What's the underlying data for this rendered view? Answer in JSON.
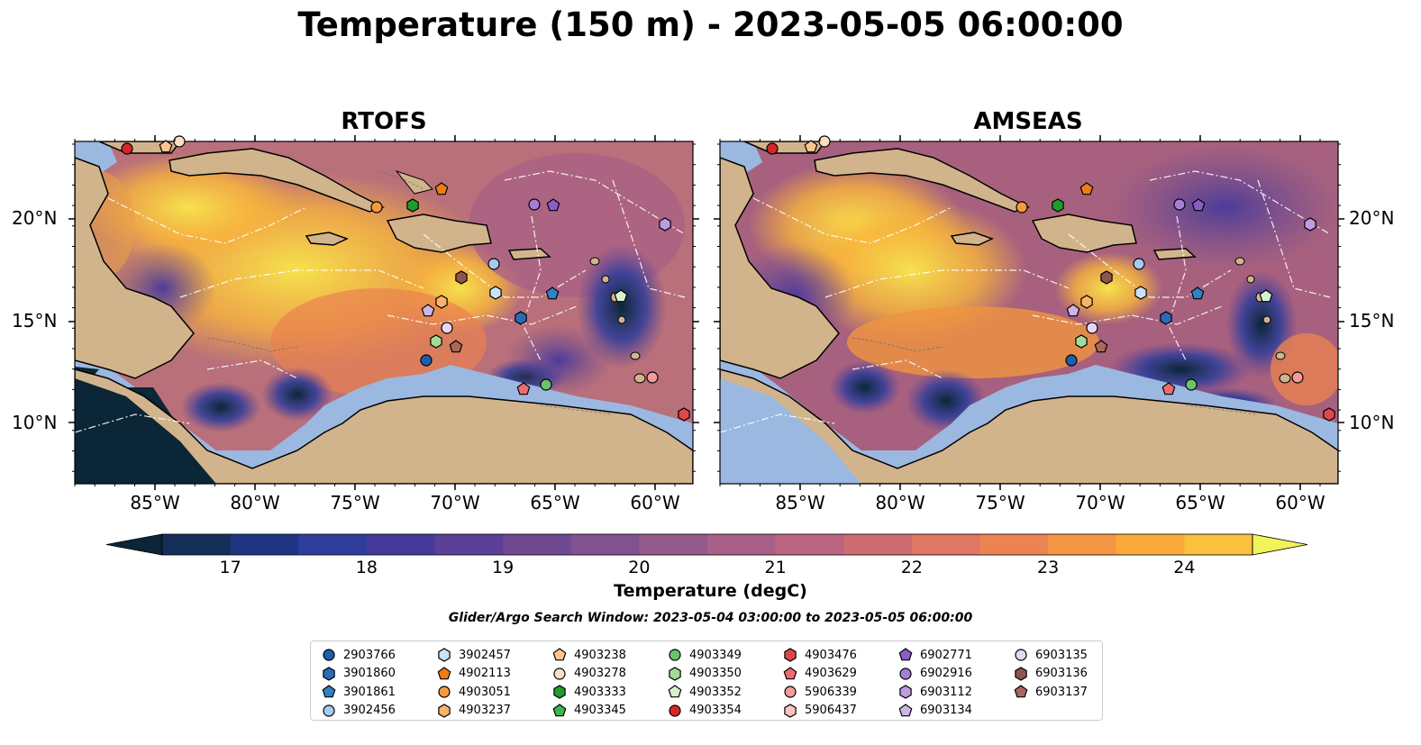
{
  "title": "Temperature (150 m) - 2023-05-05 06:00:00",
  "panels": [
    {
      "title": "RTOFS"
    },
    {
      "title": "AMSEAS"
    }
  ],
  "axes": {
    "x_ticks": [
      "85°W",
      "80°W",
      "75°W",
      "70°W",
      "65°W",
      "60°W"
    ],
    "y_ticks": [
      "20°N",
      "15°N",
      "10°N"
    ]
  },
  "colorbar": {
    "label": "Temperature (degC)",
    "ticks": [
      "17",
      "18",
      "19",
      "20",
      "21",
      "22",
      "23",
      "24"
    ],
    "range": [
      16.5,
      24.5
    ],
    "extend": "both",
    "colors": [
      "#0b2636",
      "#14305a",
      "#1f3581",
      "#2f3e9c",
      "#46399c",
      "#5c3f96",
      "#6f4a92",
      "#82528f",
      "#95598c",
      "#a85f88",
      "#bc6580",
      "#cf6b73",
      "#e17664",
      "#ec8452",
      "#f69644",
      "#fbaa3a",
      "#fbc03c",
      "#f9d84a",
      "#f0f35a"
    ]
  },
  "search_window": "Glider/Argo Search Window: 2023-05-04 03:00:00 to 2023-05-05 06:00:00",
  "legend": {
    "columns": [
      [
        {
          "label": "2903766",
          "shape": "circle",
          "color": "#1f5fa8"
        },
        {
          "label": "3901860",
          "shape": "hexagon",
          "color": "#2a6bb5"
        },
        {
          "label": "3901861",
          "shape": "pentagon",
          "color": "#2f80c6"
        },
        {
          "label": "3902456",
          "shape": "circle",
          "color": "#a4cbef"
        }
      ],
      [
        {
          "label": "3902457",
          "shape": "hexagon",
          "color": "#c8e2f8"
        },
        {
          "label": "4902113",
          "shape": "pentagon",
          "color": "#f07d12"
        },
        {
          "label": "4903051",
          "shape": "circle",
          "color": "#f89a3a"
        },
        {
          "label": "4903237",
          "shape": "hexagon",
          "color": "#fbb36a"
        }
      ],
      [
        {
          "label": "4903238",
          "shape": "pentagon",
          "color": "#fcc58e"
        },
        {
          "label": "4903278",
          "shape": "circle",
          "color": "#fde0c2"
        },
        {
          "label": "4903333",
          "shape": "hexagon",
          "color": "#1f9e2a"
        },
        {
          "label": "4903345",
          "shape": "pentagon",
          "color": "#3cb54a"
        }
      ],
      [
        {
          "label": "4903349",
          "shape": "circle",
          "color": "#69c36a"
        },
        {
          "label": "4903350",
          "shape": "hexagon",
          "color": "#a1dc97"
        },
        {
          "label": "4903352",
          "shape": "pentagon",
          "color": "#d6f2cd"
        },
        {
          "label": "4903354",
          "shape": "circle",
          "color": "#d62728"
        }
      ],
      [
        {
          "label": "4903476",
          "shape": "hexagon",
          "color": "#e0474a"
        },
        {
          "label": "4903629",
          "shape": "pentagon",
          "color": "#ef6b70"
        },
        {
          "label": "5906339",
          "shape": "circle",
          "color": "#f49a9c"
        },
        {
          "label": "5906437",
          "shape": "hexagon",
          "color": "#fbc2c2"
        }
      ],
      [
        {
          "label": "6902771",
          "shape": "pentagon",
          "color": "#8a5cc4"
        },
        {
          "label": "6902916",
          "shape": "circle",
          "color": "#a57fd4"
        },
        {
          "label": "6903112",
          "shape": "hexagon",
          "color": "#bb9de0"
        },
        {
          "label": "6903134",
          "shape": "pentagon",
          "color": "#cdb5ea"
        }
      ],
      [
        {
          "label": "6903135",
          "shape": "circle",
          "color": "#e6d6f3"
        },
        {
          "label": "6903136",
          "shape": "hexagon",
          "color": "#8c564b"
        },
        {
          "label": "6903137",
          "shape": "pentagon",
          "color": "#a8685c"
        }
      ]
    ]
  }
}
